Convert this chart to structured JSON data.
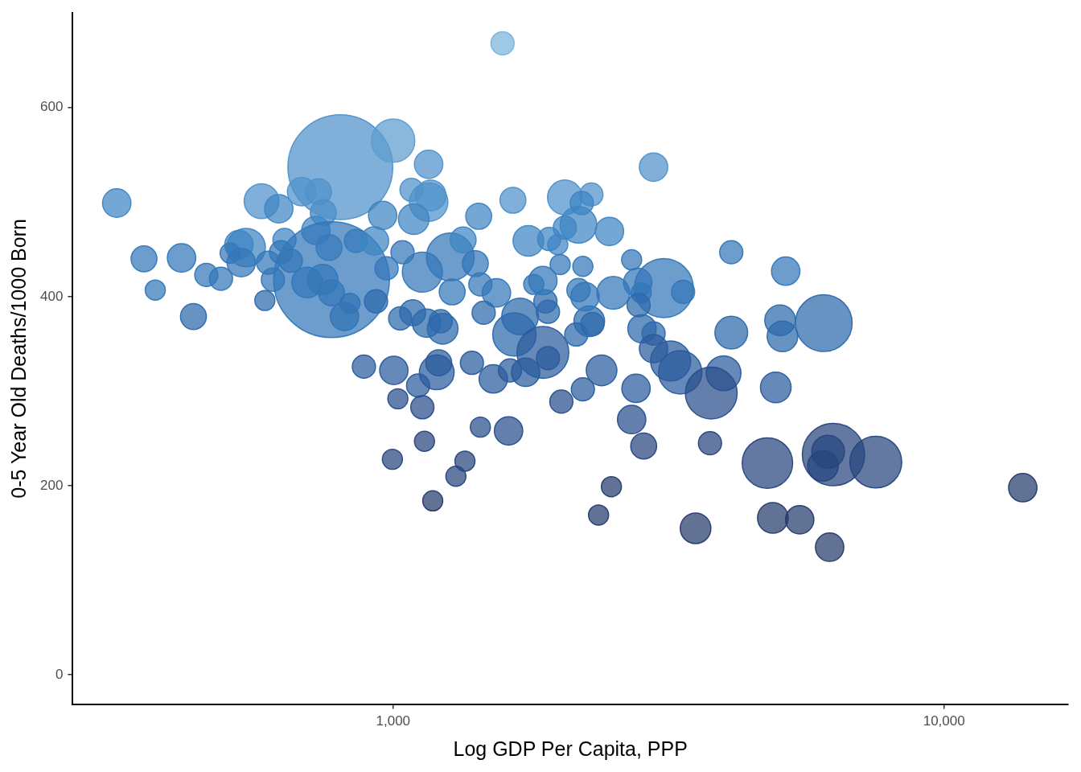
{
  "chart_data": {
    "type": "bubble",
    "xlabel": "Log GDP Per Capita, PPP",
    "ylabel": "0-5 Year Old Deaths/1000 Born",
    "log": "x",
    "xlim": [
      262,
      16800
    ],
    "ylim": [
      -31,
      700
    ],
    "xticks": [
      {
        "value": 1000,
        "label": "1,000"
      },
      {
        "value": 10000,
        "label": "10,000"
      }
    ],
    "yticks": [
      0,
      200,
      400,
      600
    ],
    "x": [
      315,
      353,
      370,
      413,
      434,
      458,
      487,
      577,
      620,
      682,
      732,
      747,
      724,
      635,
      525,
      541,
      506,
      530,
      593,
      626,
      652,
      605,
      585,
      765,
      856,
      698,
      745,
      773,
      835,
      816,
      773,
      802,
      1000,
      1160,
      1080,
      1170,
      1160,
      957,
      1090,
      1430,
      1650,
      2050,
      2290,
      2200,
      2170,
      2470,
      2050,
      1760,
      1920,
      1990,
      2010,
      2210,
      2710,
      1270,
      1340,
      1410,
      1440,
      1540,
      1280,
      1130,
      1040,
      925,
      973,
      931,
      1030,
      1085,
      1150,
      1230,
      1220,
      1460,
      1700,
      1660,
      1870,
      1910,
      1890,
      1910,
      1870,
      1800,
      2150,
      2270,
      2300,
      2170,
      2230,
      2510,
      885,
      1003,
      1110,
      1200,
      1210,
      1020,
      1130,
      1390,
      1520,
      1630,
      1740,
      2390,
      2210,
      2020,
      2760,
      2710,
      2850,
      1440,
      1620,
      1140,
      997,
      1350,
      1300,
      1180,
      2490,
      2360,
      2970,
      4110,
      5160,
      3100,
      3360,
      2780,
      2820,
      2790,
      2830,
      2970,
      2970,
      3190,
      3320,
      3980,
      4110,
      5040,
      5090,
      6050,
      4950,
      3780,
      3760,
      4780,
      6300,
      6160,
      6030,
      7520,
      13900,
      3540,
      4890,
      5470,
      6200,
      1580
    ],
    "values": [
      499,
      440,
      407,
      441,
      379,
      423,
      419,
      501,
      493,
      511,
      511,
      489,
      470,
      460,
      455,
      452,
      446,
      436,
      436,
      447,
      438,
      418,
      396,
      452,
      459,
      415,
      418,
      404,
      393,
      379,
      418,
      537,
      565,
      540,
      513,
      507,
      500,
      486,
      482,
      485,
      502,
      505,
      508,
      499,
      476,
      469,
      473,
      459,
      461,
      455,
      434,
      432,
      439,
      442,
      460,
      435,
      413,
      404,
      405,
      426,
      447,
      459,
      430,
      395,
      377,
      383,
      372,
      366,
      374,
      383,
      379,
      360,
      341,
      335,
      395,
      384,
      417,
      413,
      360,
      374,
      371,
      407,
      400,
      404,
      326,
      322,
      306,
      320,
      330,
      292,
      283,
      330,
      313,
      322,
      320,
      322,
      302,
      289,
      303,
      270,
      242,
      262,
      258,
      247,
      228,
      226,
      210,
      184,
      199,
      169,
      537,
      447,
      427,
      409,
      405,
      415,
      404,
      391,
      366,
      361,
      345,
      332,
      320,
      319,
      362,
      375,
      358,
      372,
      304,
      298,
      245,
      224,
      233,
      236,
      221,
      225,
      198,
      155,
      166,
      164,
      135,
      668
    ],
    "sizes": [
      0.06,
      0.05,
      0.03,
      0.06,
      0.05,
      0.04,
      0.04,
      0.09,
      0.06,
      0.06,
      0.05,
      0.05,
      0.06,
      0.04,
      0.06,
      0.11,
      0.03,
      0.06,
      0.04,
      0.04,
      0.04,
      0.04,
      0.03,
      0.05,
      0.04,
      0.07,
      0.07,
      0.05,
      0.03,
      0.06,
      1,
      0.82,
      0.14,
      0.06,
      0.04,
      0.07,
      0.11,
      0.06,
      0.07,
      0.05,
      0.05,
      0.09,
      0.04,
      0.04,
      0.1,
      0.06,
      0.04,
      0.07,
      0.04,
      0.03,
      0.03,
      0.03,
      0.03,
      0.17,
      0.05,
      0.05,
      0.04,
      0.06,
      0.05,
      0.12,
      0.04,
      0.06,
      0.04,
      0.04,
      0.04,
      0.05,
      0.06,
      0.07,
      0.04,
      0.04,
      0.1,
      0.14,
      0.2,
      0.04,
      0.04,
      0.04,
      0.06,
      0.03,
      0.04,
      0.07,
      0.04,
      0.04,
      0.06,
      0.08,
      0.04,
      0.06,
      0.04,
      0.09,
      0.05,
      0.03,
      0.04,
      0.04,
      0.06,
      0.04,
      0.06,
      0.07,
      0.04,
      0.04,
      0.06,
      0.06,
      0.05,
      0.03,
      0.06,
      0.03,
      0.03,
      0.03,
      0.03,
      0.03,
      0.03,
      0.03,
      0.06,
      0.04,
      0.06,
      0.26,
      0.04,
      0.06,
      0.03,
      0.04,
      0.06,
      0.04,
      0.06,
      0.12,
      0.14,
      0.09,
      0.08,
      0.07,
      0.07,
      0.24,
      0.07,
      0.2,
      0.04,
      0.19,
      0.29,
      0.08,
      0.07,
      0.2,
      0.06,
      0.07,
      0.07,
      0.06,
      0.06,
      0.04
    ],
    "colors": [
      "#3f85c3",
      "#3377b9",
      "#3377b9",
      "#3377b9",
      "#2d69ac",
      "#3377b9",
      "#3377b9",
      "#4f92ca",
      "#3f85c3",
      "#4f92ca",
      "#4f92ca",
      "#3f85c3",
      "#3f85c3",
      "#3f85c3",
      "#3f85c3",
      "#3f85c3",
      "#3377b9",
      "#3377b9",
      "#3377b9",
      "#3377b9",
      "#3377b9",
      "#3377b9",
      "#2d69ac",
      "#3f85c3",
      "#3f85c3",
      "#3377b9",
      "#3377b9",
      "#3377b9",
      "#2d69ac",
      "#2d69ac",
      "#3377b9",
      "#4f92ca",
      "#5d9dd0",
      "#4f92ca",
      "#4f92ca",
      "#4f92ca",
      "#4f92ca",
      "#3f85c3",
      "#3f85c3",
      "#3f85c3",
      "#4f92ca",
      "#4f92ca",
      "#4f92ca",
      "#3f85c3",
      "#3f85c3",
      "#3f85c3",
      "#3f85c3",
      "#3f85c3",
      "#3f85c3",
      "#3f85c3",
      "#3377b9",
      "#3377b9",
      "#3377b9",
      "#3377b9",
      "#3f85c3",
      "#3377b9",
      "#3377b9",
      "#3377b9",
      "#3377b9",
      "#3377b9",
      "#3377b9",
      "#3f85c3",
      "#3377b9",
      "#2d69ac",
      "#2d69ac",
      "#2d69ac",
      "#2d69ac",
      "#2d69ac",
      "#2d69ac",
      "#2d69ac",
      "#2d69ac",
      "#2d69ac",
      "#2a5b9c",
      "#2a5b9c",
      "#2d69ac",
      "#2d69ac",
      "#3377b9",
      "#3377b9",
      "#2d69ac",
      "#2d69ac",
      "#2d69ac",
      "#3377b9",
      "#3377b9",
      "#3377b9",
      "#2a5b9c",
      "#2a5b9c",
      "#2a5b9c",
      "#2a5b9c",
      "#2a5b9c",
      "#284e8c",
      "#284e8c",
      "#2a5b9c",
      "#2a5b9c",
      "#2a5b9c",
      "#2a5b9c",
      "#2a5b9c",
      "#2a5b9c",
      "#284e8c",
      "#2a5b9c",
      "#284e8c",
      "#27457e",
      "#284e8c",
      "#284e8c",
      "#27457e",
      "#27457e",
      "#27457e",
      "#27457e",
      "#263b6c",
      "#263b6c",
      "#263b6c",
      "#4f92ca",
      "#3377b9",
      "#3377b9",
      "#3377b9",
      "#3377b9",
      "#3377b9",
      "#3377b9",
      "#2d69ac",
      "#2d69ac",
      "#2d69ac",
      "#2a5b9c",
      "#2a5b9c",
      "#2a5b9c",
      "#2a5b9c",
      "#2d69ac",
      "#2d69ac",
      "#2d69ac",
      "#2d69ac",
      "#2a5b9c",
      "#284e8c",
      "#27457e",
      "#27457e",
      "#27457e",
      "#27457e",
      "#27457e",
      "#27457e",
      "#263b6c",
      "#263b6c",
      "#263b6c",
      "#263b6c",
      "#263b6c",
      "#7ab3dc"
    ]
  }
}
